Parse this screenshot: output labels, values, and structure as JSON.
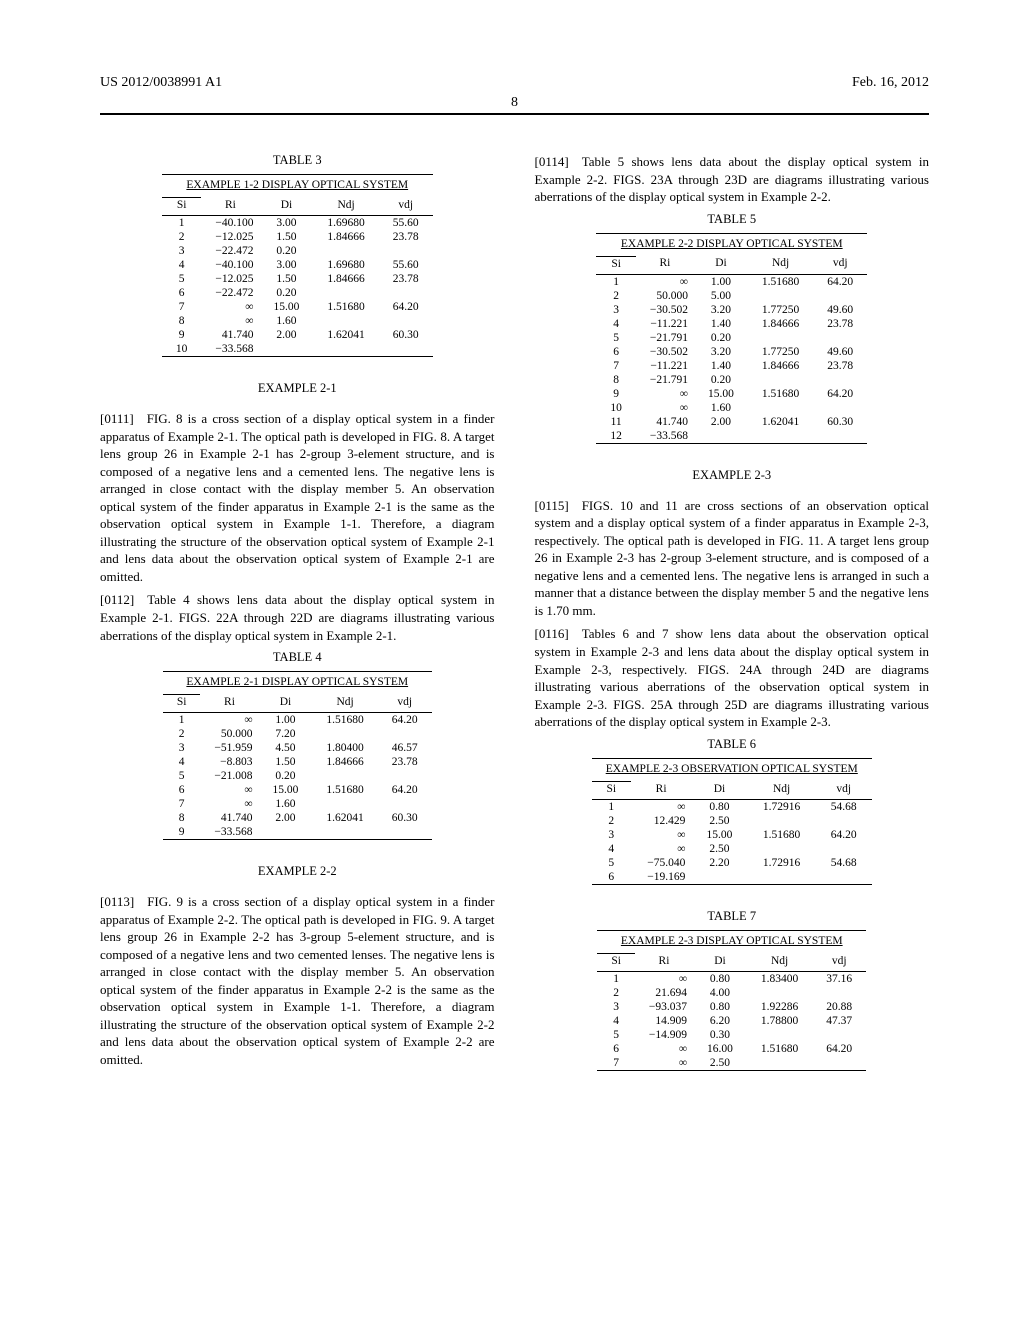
{
  "header": {
    "left": "US 2012/0038991 A1",
    "right": "Feb. 16, 2012",
    "page": "8"
  },
  "tables": {
    "t3": {
      "label": "TABLE 3",
      "title": "EXAMPLE 1-2 DISPLAY OPTICAL SYSTEM",
      "cols": [
        "Si",
        "Ri",
        "Di",
        "Ndj",
        "vdj"
      ],
      "rows": [
        [
          "1",
          "−40.100",
          "3.00",
          "1.69680",
          "55.60"
        ],
        [
          "2",
          "−12.025",
          "1.50",
          "1.84666",
          "23.78"
        ],
        [
          "3",
          "−22.472",
          "0.20",
          "",
          ""
        ],
        [
          "4",
          "−40.100",
          "3.00",
          "1.69680",
          "55.60"
        ],
        [
          "5",
          "−12.025",
          "1.50",
          "1.84666",
          "23.78"
        ],
        [
          "6",
          "−22.472",
          "0.20",
          "",
          ""
        ],
        [
          "7",
          "∞",
          "15.00",
          "1.51680",
          "64.20"
        ],
        [
          "8",
          "∞",
          "1.60",
          "",
          ""
        ],
        [
          "9",
          "41.740",
          "2.00",
          "1.62041",
          "60.30"
        ],
        [
          "10",
          "−33.568",
          "",
          "",
          ""
        ]
      ]
    },
    "t4": {
      "label": "TABLE 4",
      "title": "EXAMPLE 2-1 DISPLAY OPTICAL SYSTEM",
      "cols": [
        "Si",
        "Ri",
        "Di",
        "Ndj",
        "vdj"
      ],
      "rows": [
        [
          "1",
          "∞",
          "1.00",
          "1.51680",
          "64.20"
        ],
        [
          "2",
          "50.000",
          "7.20",
          "",
          ""
        ],
        [
          "3",
          "−51.959",
          "4.50",
          "1.80400",
          "46.57"
        ],
        [
          "4",
          "−8.803",
          "1.50",
          "1.84666",
          "23.78"
        ],
        [
          "5",
          "−21.008",
          "0.20",
          "",
          ""
        ],
        [
          "6",
          "∞",
          "15.00",
          "1.51680",
          "64.20"
        ],
        [
          "7",
          "∞",
          "1.60",
          "",
          ""
        ],
        [
          "8",
          "41.740",
          "2.00",
          "1.62041",
          "60.30"
        ],
        [
          "9",
          "−33.568",
          "",
          "",
          ""
        ]
      ]
    },
    "t5": {
      "label": "TABLE 5",
      "title": "EXAMPLE 2-2 DISPLAY OPTICAL SYSTEM",
      "cols": [
        "Si",
        "Ri",
        "Di",
        "Ndj",
        "vdj"
      ],
      "rows": [
        [
          "1",
          "∞",
          "1.00",
          "1.51680",
          "64.20"
        ],
        [
          "2",
          "50.000",
          "5.00",
          "",
          ""
        ],
        [
          "3",
          "−30.502",
          "3.20",
          "1.77250",
          "49.60"
        ],
        [
          "4",
          "−11.221",
          "1.40",
          "1.84666",
          "23.78"
        ],
        [
          "5",
          "−21.791",
          "0.20",
          "",
          ""
        ],
        [
          "6",
          "−30.502",
          "3.20",
          "1.77250",
          "49.60"
        ],
        [
          "7",
          "−11.221",
          "1.40",
          "1.84666",
          "23.78"
        ],
        [
          "8",
          "−21.791",
          "0.20",
          "",
          ""
        ],
        [
          "9",
          "∞",
          "15.00",
          "1.51680",
          "64.20"
        ],
        [
          "10",
          "∞",
          "1.60",
          "",
          ""
        ],
        [
          "11",
          "41.740",
          "2.00",
          "1.62041",
          "60.30"
        ],
        [
          "12",
          "−33.568",
          "",
          "",
          ""
        ]
      ]
    },
    "t6": {
      "label": "TABLE 6",
      "title": "EXAMPLE 2-3 OBSERVATION OPTICAL SYSTEM",
      "cols": [
        "Si",
        "Ri",
        "Di",
        "Ndj",
        "vdj"
      ],
      "rows": [
        [
          "1",
          "∞",
          "0.80",
          "1.72916",
          "54.68"
        ],
        [
          "2",
          "12.429",
          "2.50",
          "",
          ""
        ],
        [
          "3",
          "∞",
          "15.00",
          "1.51680",
          "64.20"
        ],
        [
          "4",
          "∞",
          "2.50",
          "",
          ""
        ],
        [
          "5",
          "−75.040",
          "2.20",
          "1.72916",
          "54.68"
        ],
        [
          "6",
          "−19.169",
          "",
          "",
          ""
        ]
      ]
    },
    "t7": {
      "label": "TABLE 7",
      "title": "EXAMPLE 2-3 DISPLAY OPTICAL SYSTEM",
      "cols": [
        "Si",
        "Ri",
        "Di",
        "Ndj",
        "vdj"
      ],
      "rows": [
        [
          "1",
          "∞",
          "0.80",
          "1.83400",
          "37.16"
        ],
        [
          "2",
          "21.694",
          "4.00",
          "",
          ""
        ],
        [
          "3",
          "−93.037",
          "0.80",
          "1.92286",
          "20.88"
        ],
        [
          "4",
          "14.909",
          "6.20",
          "1.78800",
          "47.37"
        ],
        [
          "5",
          "−14.909",
          "0.30",
          "",
          ""
        ],
        [
          "6",
          "∞",
          "16.00",
          "1.51680",
          "64.20"
        ],
        [
          "7",
          "∞",
          "2.50",
          "",
          ""
        ]
      ]
    }
  },
  "headings": {
    "ex21": "EXAMPLE 2-1",
    "ex22": "EXAMPLE 2-2",
    "ex23": "EXAMPLE 2-3"
  },
  "paras": {
    "p0111n": "[0111]",
    "p0111": " FIG. 8 is a cross section of a display optical system in a finder apparatus of Example 2-1. The optical path is developed in FIG. 8. A target lens group 26 in Example 2-1 has 2-group 3-element structure, and is composed of a negative lens and a cemented lens. The negative lens is arranged in close contact with the display member 5. An observation optical system of the finder apparatus in Example 2-1 is the same as the observation optical system in Example 1-1. Therefore, a diagram illustrating the structure of the observation optical system of Example 2-1 and lens data about the observation optical system of Example 2-1 are omitted.",
    "p0112n": "[0112]",
    "p0112": " Table 4 shows lens data about the display optical system in Example 2-1. FIGS. 22A through 22D are diagrams illustrating various aberrations of the display optical system in Example 2-1.",
    "p0113n": "[0113]",
    "p0113": " FIG. 9 is a cross section of a display optical system in a finder apparatus of Example 2-2. The optical path is developed in FIG. 9. A target lens group 26 in Example 2-2 has 3-group 5-element structure, and is composed of a negative lens and two cemented lenses. The negative lens is arranged in close contact with the display member 5. An observation optical system of the finder apparatus in Example 2-2 is the same as the observation optical system in Example 1-1. Therefore, a diagram illustrating the structure of the observation optical system of Example 2-2 and lens data about the observation optical system of Example 2-2 are omitted.",
    "p0114n": "[0114]",
    "p0114": " Table 5 shows lens data about the display optical system in Example 2-2. FIGS. 23A through 23D are diagrams illustrating various aberrations of the display optical system in Example 2-2.",
    "p0115n": "[0115]",
    "p0115": " FIGS. 10 and 11 are cross sections of an observation optical system and a display optical system of a finder apparatus in Example 2-3, respectively. The optical path is developed in FIG. 11. A target lens group 26 in Example 2-3 has 2-group 3-element structure, and is composed of a negative lens and a cemented lens. The negative lens is arranged in such a manner that a distance between the display member 5 and the negative lens is 1.70 mm.",
    "p0116n": "[0116]",
    "p0116": " Tables 6 and 7 show lens data about the observation optical system in Example 2-3 and lens data about the display optical system in Example 2-3, respectively. FIGS. 24A through 24D are diagrams illustrating various aberrations of the observation optical system in Example 2-3. FIGS. 25A through 25D are diagrams illustrating various aberrations of the display optical system in Example 2-3."
  }
}
